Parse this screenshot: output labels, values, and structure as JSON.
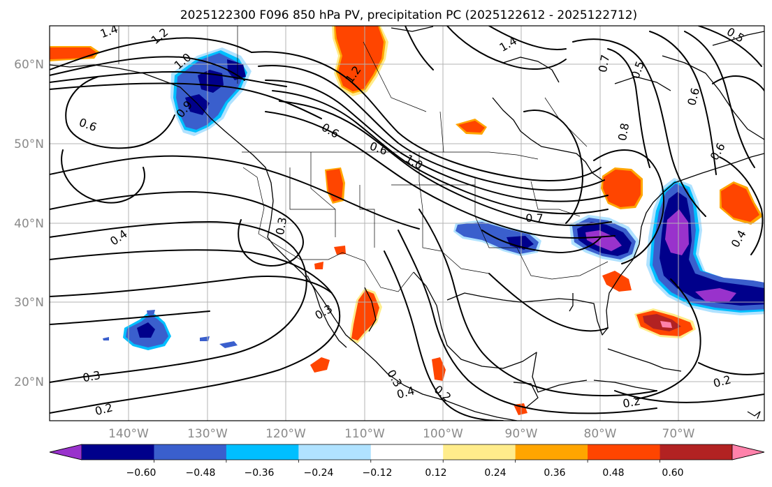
{
  "title": "2025122300 F096 850 hPa PV, precipitation PC (2025122612 - 2025122712)",
  "map": {
    "projection": "PlateCarree",
    "lon_range": [
      -148,
      -57
    ],
    "lat_range": [
      15,
      65
    ],
    "lat_gridlines": [
      20,
      30,
      40,
      50,
      60
    ],
    "lon_gridlines": [
      -140,
      -130,
      -120,
      -110,
      -100,
      -90,
      -80,
      -70
    ],
    "lat_labels": [
      "20°N",
      "30°N",
      "40°N",
      "50°N",
      "60°N"
    ],
    "lon_labels": [
      "140°W",
      "130°W",
      "120°W",
      "110°W",
      "100°W",
      "90°W",
      "80°W",
      "70°W"
    ]
  },
  "colorbar": {
    "tick_labels": [
      "−0.60",
      "−0.48",
      "−0.36",
      "−0.24",
      "−0.12",
      "0.12",
      "0.24",
      "0.36",
      "0.48",
      "0.60"
    ],
    "colors": [
      "#9932cc",
      "#00008b",
      "#3a5fcd",
      "#00bfff",
      "#b0e2ff",
      "#ffffff",
      "#ffec8b",
      "#ffa500",
      "#ff4500",
      "#b22222",
      "#ff82ab"
    ],
    "extend": "both"
  },
  "contour_labels": {
    "c1_4a": "1.4",
    "c1_2a": "1.2",
    "c1_0a": "1.0",
    "c0_9a": "0.9",
    "c0_6a": "0.6",
    "c0_4a": "0.4",
    "c0_3a": "0.3",
    "c0_2a": "0.2",
    "c0_3b": "0.3",
    "c0_3c": "0.3",
    "c0_6b": "0.6",
    "c0_6c": "0.6",
    "c1_0b": "1.0",
    "c1_2b": "1.2",
    "c1_4b": "1.4",
    "c0_7a": "0.7",
    "c0_7b": "0.7",
    "c0_5a": "0.5",
    "c0_6d": "0.6",
    "c0_8a": "0.8",
    "c0_5b": "0.5",
    "c0_4b": "0.4",
    "c0_2b": "0.2",
    "c0_2c": "0.2",
    "c0_4c": "0.4",
    "c0_3d": "0.3",
    "c0_2d": "0.2",
    "c0_6e": "0.6"
  },
  "precip_anomaly_cells": [
    {
      "name": "gulf-of-alaska-negative",
      "lon": -132,
      "lat": 59,
      "value": -0.5
    },
    {
      "name": "hawaii-negative",
      "lon": -137,
      "lat": 26,
      "value": -0.45
    },
    {
      "name": "plains-negative",
      "lon": -92,
      "lat": 39,
      "value": -0.55
    },
    {
      "name": "midatlantic-negative",
      "lon": -80,
      "lat": 38.5,
      "value": -0.62
    },
    {
      "name": "atlantic-negative",
      "lon": -68,
      "lat": 35,
      "value": -0.65
    },
    {
      "name": "hudson-bay-positive",
      "lon": -108,
      "lat": 61,
      "value": 0.45
    },
    {
      "name": "alaska-west-positive",
      "lon": -145,
      "lat": 62,
      "value": 0.45
    },
    {
      "name": "baja-positive",
      "lon": -106,
      "lat": 27,
      "value": 0.4
    },
    {
      "name": "northeast-positive",
      "lon": -79,
      "lat": 44.5,
      "value": 0.45
    },
    {
      "name": "newfoundland-positive",
      "lon": -64,
      "lat": 42,
      "value": 0.45
    },
    {
      "name": "bahamas-positive",
      "lon": -74,
      "lat": 25.5,
      "value": 0.55
    },
    {
      "name": "mexico-positive",
      "lon": -101,
      "lat": 20.5,
      "value": 0.4
    }
  ]
}
